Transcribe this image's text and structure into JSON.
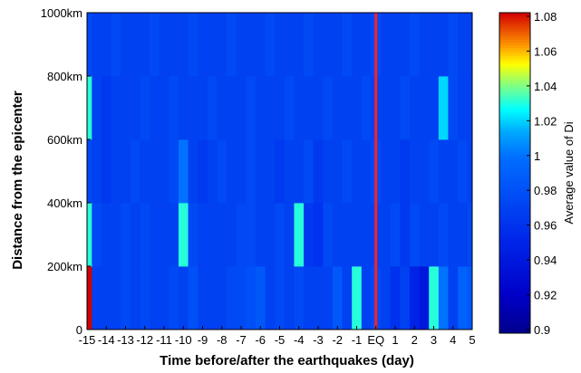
{
  "chart_data": {
    "type": "heatmap",
    "title": "",
    "xlabel": "Time before/after the earthquakes (day)",
    "ylabel": "Distance from the epicenter",
    "x_tick_labels": [
      "-15",
      "-14",
      "-13",
      "-12",
      "-11",
      "-10",
      "-9",
      "-8",
      "-7",
      "-6",
      "-5",
      "-4",
      "-3",
      "-2",
      "-1",
      "EQ",
      "1",
      "2",
      "3",
      "4",
      "5"
    ],
    "y_tick_labels": [
      "0",
      "200km",
      "400km",
      "600km",
      "800km",
      "1000km"
    ],
    "x_range": [
      -15,
      5
    ],
    "y_range": [
      0,
      1000
    ],
    "x_step_days": 0.5,
    "y_bins": [
      "0-200km",
      "200-400km",
      "400-600km",
      "600-800km",
      "800-1000km"
    ],
    "eq_marker_day": 0,
    "eq_marker_color": "#ff2020",
    "colorbar": {
      "label": "Average value of Di",
      "min": 0.9,
      "max": 1.08,
      "ticks": [
        "0.9",
        "0.92",
        "0.94",
        "0.96",
        "0.98",
        "1",
        "1.02",
        "1.04",
        "1.06",
        "1.08"
      ]
    },
    "values": [
      [
        1.08,
        0.97,
        0.97,
        0.97,
        0.975,
        0.97,
        0.975,
        0.97,
        0.97,
        0.975,
        0.97,
        0.98,
        0.97,
        0.97,
        0.97,
        0.975,
        0.975,
        0.98,
        0.985,
        0.97,
        0.975,
        0.97,
        0.975,
        0.97,
        0.97,
        0.97,
        0.985,
        0.97,
        1.03,
        0.97,
        0.975,
        0.97,
        0.96,
        0.97,
        0.95,
        0.94,
        1.03,
        1.0,
        0.97,
        0.99,
        0.985
      ],
      [
        1.03,
        0.975,
        0.97,
        0.97,
        0.975,
        0.97,
        0.975,
        0.97,
        0.97,
        0.97,
        1.03,
        0.975,
        0.97,
        0.97,
        0.97,
        0.97,
        0.975,
        0.975,
        0.97,
        0.97,
        0.975,
        0.97,
        1.03,
        0.965,
        0.96,
        0.975,
        0.97,
        0.97,
        0.97,
        0.97,
        0.97,
        0.97,
        0.975,
        0.965,
        0.975,
        0.97,
        0.97,
        0.975,
        0.97,
        0.97,
        0.975
      ],
      [
        0.975,
        0.97,
        0.965,
        0.97,
        0.97,
        0.975,
        0.97,
        0.97,
        0.97,
        0.975,
        1.0,
        0.97,
        0.965,
        0.97,
        0.975,
        0.97,
        0.97,
        0.975,
        0.97,
        0.97,
        0.965,
        0.97,
        0.97,
        0.975,
        0.965,
        0.97,
        0.97,
        0.975,
        0.97,
        0.97,
        0.975,
        0.97,
        0.97,
        0.965,
        0.97,
        0.97,
        0.975,
        0.97,
        0.97,
        0.975,
        0.97
      ],
      [
        1.03,
        0.97,
        0.965,
        0.97,
        0.97,
        0.97,
        0.975,
        0.97,
        0.97,
        0.975,
        0.97,
        0.97,
        0.97,
        0.975,
        0.97,
        0.97,
        0.97,
        0.975,
        0.97,
        0.97,
        0.97,
        0.975,
        0.97,
        0.97,
        0.97,
        0.975,
        0.97,
        0.97,
        0.97,
        0.975,
        0.97,
        0.97,
        0.97,
        0.975,
        0.97,
        0.97,
        0.97,
        1.02,
        0.975,
        0.97,
        0.97
      ],
      [
        0.975,
        0.97,
        0.97,
        0.975,
        0.97,
        0.97,
        0.97,
        0.975,
        0.97,
        0.97,
        0.97,
        0.975,
        0.97,
        0.97,
        0.97,
        0.975,
        0.97,
        0.97,
        0.97,
        0.975,
        0.97,
        0.97,
        0.97,
        0.975,
        0.97,
        0.97,
        0.97,
        0.975,
        0.97,
        0.97,
        0.975,
        0.97,
        0.97,
        0.97,
        0.975,
        0.97,
        0.97,
        0.97,
        0.975,
        0.97,
        0.97
      ]
    ]
  }
}
